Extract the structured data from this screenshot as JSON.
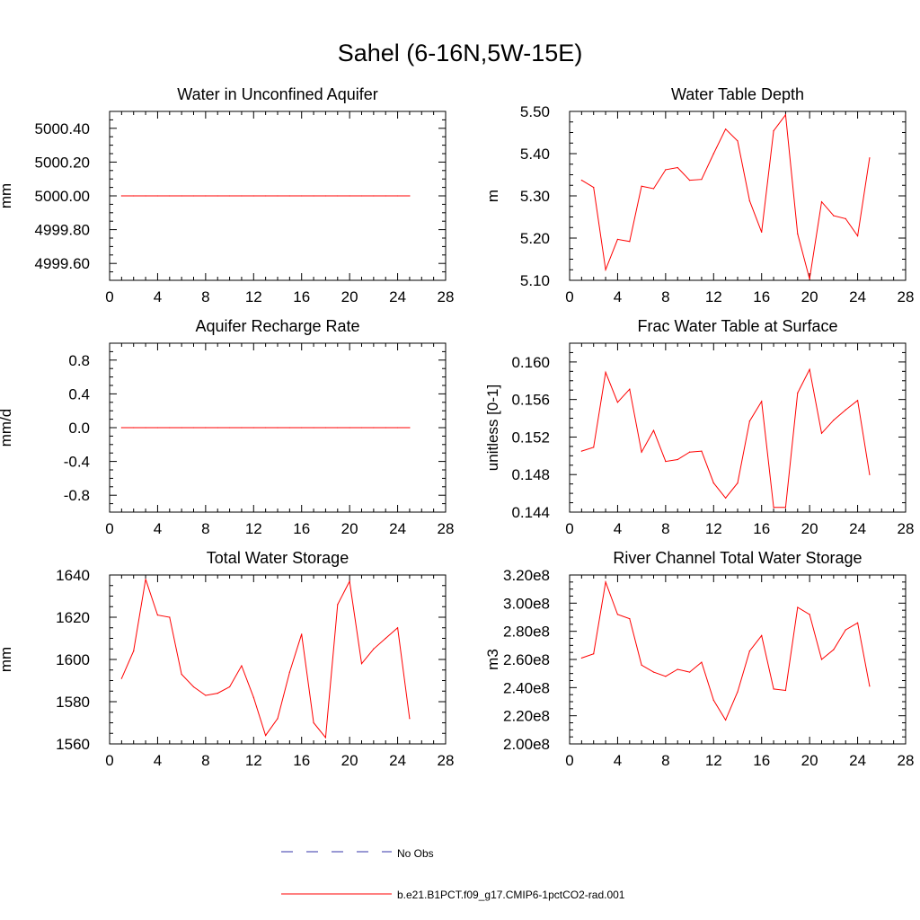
{
  "title": "Sahel (6-16N,5W-15E)",
  "colors": {
    "model": "#ff0000",
    "obs": "#3333aa",
    "axis": "#000000"
  },
  "legend": {
    "obs_label": "No Obs",
    "model_label": "b.e21.B1PCT.f09_g17.CMIP6-1pctCO2-rad.001"
  },
  "chart_data": [
    {
      "type": "line",
      "title": "Water in Unconfined Aquifer",
      "ylabel": "mm",
      "xlim": [
        0,
        28
      ],
      "ylim": [
        4999.5,
        5000.5
      ],
      "xticks": [
        0,
        4,
        8,
        12,
        16,
        20,
        24,
        28
      ],
      "yticks": [
        4999.6,
        4999.8,
        5000.0,
        5000.2,
        5000.4
      ],
      "ytick_labels": [
        "4999.60",
        "4999.80",
        "5000.00",
        "5000.20",
        "5000.40"
      ],
      "series": [
        {
          "x": [
            1,
            2,
            3,
            4,
            5,
            6,
            7,
            8,
            9,
            10,
            11,
            12,
            13,
            14,
            15,
            16,
            17,
            18,
            19,
            20,
            21,
            22,
            23,
            24,
            25
          ],
          "values": [
            5000,
            5000,
            5000,
            5000,
            5000,
            5000,
            5000,
            5000,
            5000,
            5000,
            5000,
            5000,
            5000,
            5000,
            5000,
            5000,
            5000,
            5000,
            5000,
            5000,
            5000,
            5000,
            5000,
            5000,
            5000
          ]
        }
      ]
    },
    {
      "type": "line",
      "title": "Water Table Depth",
      "ylabel": "m",
      "xlim": [
        0,
        28
      ],
      "ylim": [
        5.1,
        5.5
      ],
      "xticks": [
        0,
        4,
        8,
        12,
        16,
        20,
        24,
        28
      ],
      "yticks": [
        5.1,
        5.2,
        5.3,
        5.4,
        5.5
      ],
      "ytick_labels": [
        "5.10",
        "5.20",
        "5.30",
        "5.40",
        "5.50"
      ],
      "series": [
        {
          "x": [
            1,
            2,
            3,
            4,
            5,
            6,
            7,
            8,
            9,
            10,
            11,
            12,
            13,
            14,
            15,
            16,
            17,
            18,
            19,
            20,
            21,
            22,
            23,
            24,
            25
          ],
          "values": [
            5.337,
            5.32,
            5.125,
            5.197,
            5.192,
            5.323,
            5.317,
            5.362,
            5.367,
            5.337,
            5.339,
            5.4,
            5.458,
            5.43,
            5.288,
            5.214,
            5.454,
            5.492,
            5.21,
            5.103,
            5.286,
            5.253,
            5.246,
            5.205,
            5.39
          ]
        }
      ]
    },
    {
      "type": "line",
      "title": "Aquifer Recharge Rate",
      "ylabel": "mm/d",
      "xlim": [
        0,
        28
      ],
      "ylim": [
        -1.0,
        1.0
      ],
      "xticks": [
        0,
        4,
        8,
        12,
        16,
        20,
        24,
        28
      ],
      "yticks": [
        -0.8,
        -0.4,
        0.0,
        0.4,
        0.8
      ],
      "ytick_labels": [
        "-0.8",
        "-0.4",
        "0.0",
        "0.4",
        "0.8"
      ],
      "series": [
        {
          "x": [
            1,
            2,
            3,
            4,
            5,
            6,
            7,
            8,
            9,
            10,
            11,
            12,
            13,
            14,
            15,
            16,
            17,
            18,
            19,
            20,
            21,
            22,
            23,
            24,
            25
          ],
          "values": [
            0,
            0,
            0,
            0,
            0,
            0,
            0,
            0,
            0,
            0,
            0,
            0,
            0,
            0,
            0,
            0,
            0,
            0,
            0,
            0,
            0,
            0,
            0,
            0,
            0
          ]
        }
      ]
    },
    {
      "type": "line",
      "title": "Frac Water Table at Surface",
      "ylabel": "unitless [0-1]",
      "xlim": [
        0,
        28
      ],
      "ylim": [
        0.144,
        0.162
      ],
      "xticks": [
        0,
        4,
        8,
        12,
        16,
        20,
        24,
        28
      ],
      "yticks": [
        0.144,
        0.148,
        0.152,
        0.156,
        0.16
      ],
      "ytick_labels": [
        "0.144",
        "0.148",
        "0.152",
        "0.156",
        "0.160"
      ],
      "series": [
        {
          "x": [
            1,
            2,
            3,
            4,
            5,
            6,
            7,
            8,
            9,
            10,
            11,
            12,
            13,
            14,
            15,
            16,
            17,
            18,
            19,
            20,
            21,
            22,
            23,
            24,
            25
          ],
          "values": [
            0.1505,
            0.1509,
            0.1589,
            0.1557,
            0.1571,
            0.1504,
            0.1527,
            0.1494,
            0.1496,
            0.1504,
            0.1505,
            0.1471,
            0.1455,
            0.1471,
            0.1537,
            0.1558,
            0.1445,
            0.1445,
            0.1567,
            0.1592,
            0.1524,
            0.1538,
            0.1549,
            0.1559,
            0.148
          ]
        }
      ]
    },
    {
      "type": "line",
      "title": "Total Water Storage",
      "ylabel": "mm",
      "xlim": [
        0,
        28
      ],
      "ylim": [
        1560,
        1640
      ],
      "xticks": [
        0,
        4,
        8,
        12,
        16,
        20,
        24,
        28
      ],
      "yticks": [
        1560,
        1580,
        1600,
        1620,
        1640
      ],
      "ytick_labels": [
        "1560",
        "1580",
        "1600",
        "1620",
        "1640"
      ],
      "series": [
        {
          "x": [
            1,
            2,
            3,
            4,
            5,
            6,
            7,
            8,
            9,
            10,
            11,
            12,
            13,
            14,
            15,
            16,
            17,
            18,
            19,
            20,
            21,
            22,
            23,
            24,
            25
          ],
          "values": [
            1591,
            1604,
            1638,
            1621,
            1620,
            1593,
            1587,
            1583,
            1584,
            1587,
            1597,
            1582,
            1564,
            1572,
            1594,
            1612,
            1570,
            1563,
            1626,
            1637,
            1598,
            1605,
            1610,
            1615,
            1572
          ]
        }
      ]
    },
    {
      "type": "line",
      "title": "River Channel Total Water Storage",
      "ylabel": "m3",
      "xlim": [
        0,
        28
      ],
      "ylim": [
        200000000.0,
        320000000.0
      ],
      "xticks": [
        0,
        4,
        8,
        12,
        16,
        20,
        24,
        28
      ],
      "yticks": [
        200000000.0,
        220000000.0,
        240000000.0,
        260000000.0,
        280000000.0,
        300000000.0,
        320000000.0
      ],
      "ytick_labels": [
        "2.00e8",
        "2.20e8",
        "2.40e8",
        "2.60e8",
        "2.80e8",
        "3.00e8",
        "3.20e8"
      ],
      "series": [
        {
          "x": [
            1,
            2,
            3,
            4,
            5,
            6,
            7,
            8,
            9,
            10,
            11,
            12,
            13,
            14,
            15,
            16,
            17,
            18,
            19,
            20,
            21,
            22,
            23,
            24,
            25
          ],
          "values": [
            261000000.0,
            264000000.0,
            315000000.0,
            292000000.0,
            289000000.0,
            256000000.0,
            251000000.0,
            248000000.0,
            253000000.0,
            251000000.0,
            258000000.0,
            231000000.0,
            217000000.0,
            237000000.0,
            266000000.0,
            277000000.0,
            239000000.0,
            238000000.0,
            297000000.0,
            292000000.0,
            260000000.0,
            267000000.0,
            281000000.0,
            286000000.0,
            241000000.0
          ]
        }
      ]
    }
  ]
}
